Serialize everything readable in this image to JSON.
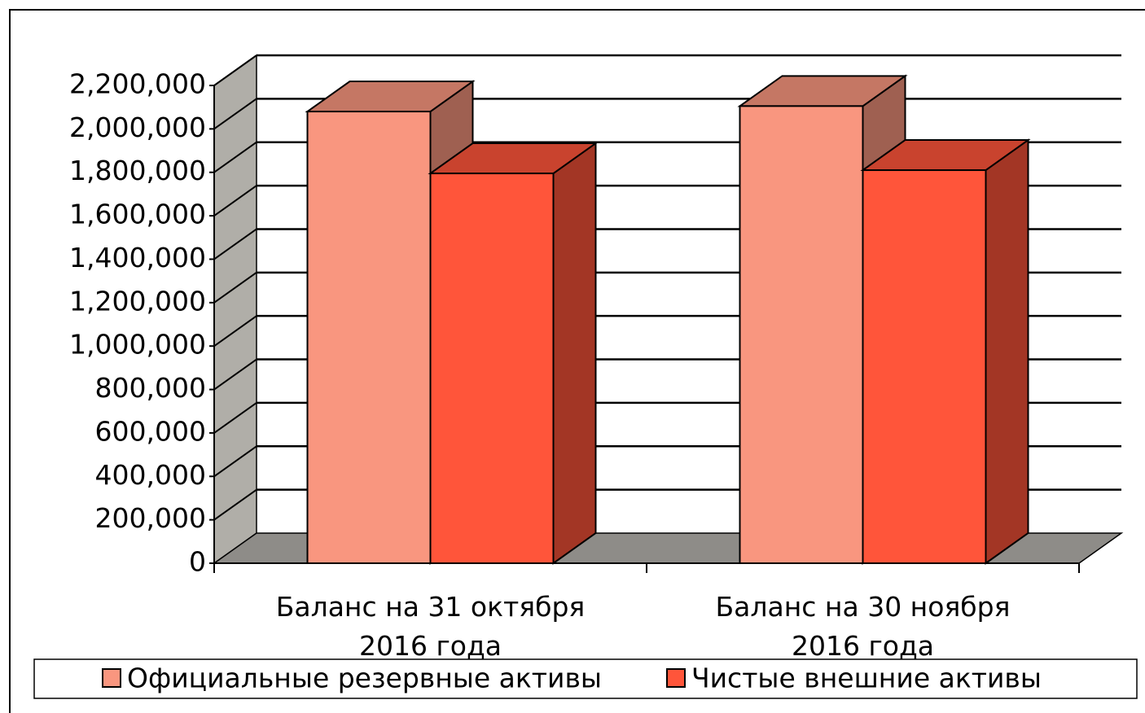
{
  "chart_data": {
    "type": "bar3d",
    "categories": [
      "Баланс на 31 октября 2016 года",
      "Баланс на 30 ноября 2016 года"
    ],
    "series": [
      {
        "name": "Официальные резервные активы",
        "color": "#f9967f",
        "values": [
          2080000,
          2105000
        ]
      },
      {
        "name": "Чистые внешние активы",
        "color": "#ff553a",
        "values": [
          1795000,
          1810000
        ]
      }
    ],
    "ylim": [
      0,
      2200000
    ],
    "yticks": [
      {
        "value": 0,
        "label": "0"
      },
      {
        "value": 200000,
        "label": "200,000"
      },
      {
        "value": 400000,
        "label": "400,000"
      },
      {
        "value": 600000,
        "label": "600,000"
      },
      {
        "value": 800000,
        "label": "800,000"
      },
      {
        "value": 1000000,
        "label": "1,000,000"
      },
      {
        "value": 1200000,
        "label": "1,200,000"
      },
      {
        "value": 1400000,
        "label": "1,400,000"
      },
      {
        "value": 1600000,
        "label": "1,600,000"
      },
      {
        "value": 1800000,
        "label": "1,800,000"
      },
      {
        "value": 2000000,
        "label": "2,000,000"
      },
      {
        "value": 2200000,
        "label": "2,200,000"
      }
    ],
    "grid": true,
    "legend": "bottom"
  }
}
